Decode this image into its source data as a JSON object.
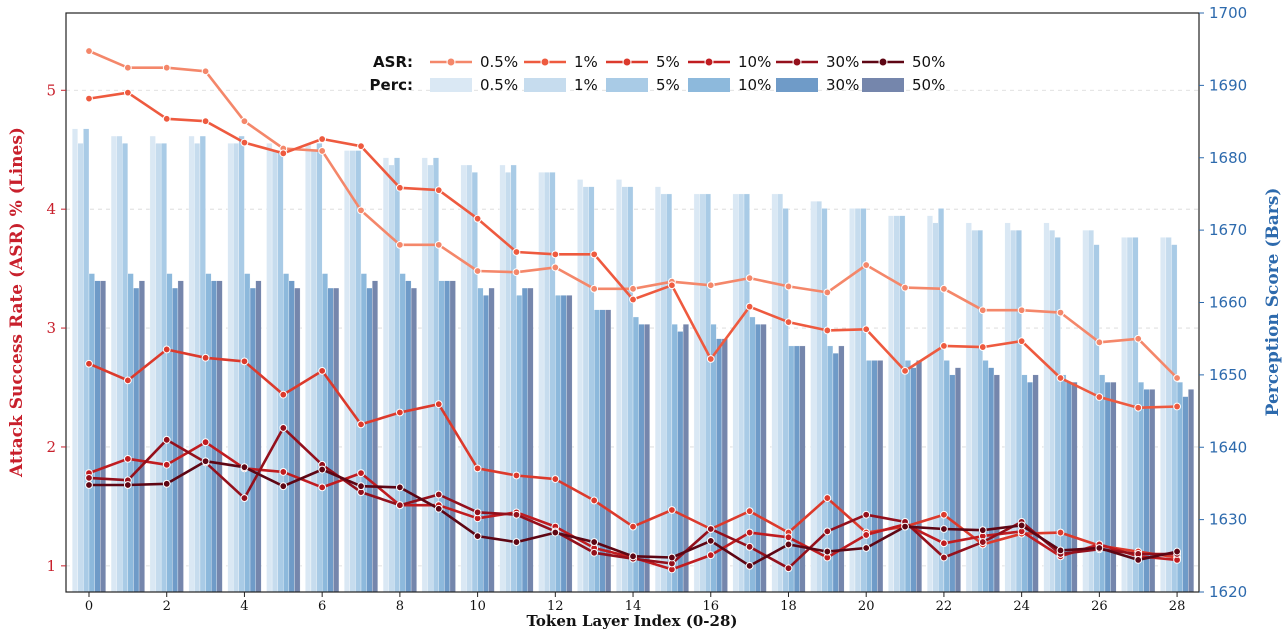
{
  "chart_data": {
    "type": "bar",
    "title": "",
    "xlabel": "Token Layer Index (0-28)",
    "ylabel_left": "Attack Success Rate (ASR) % (Lines)",
    "ylabel_right": "Perception Score (Bars)",
    "x": [
      0,
      1,
      2,
      3,
      4,
      5,
      6,
      7,
      8,
      9,
      10,
      11,
      12,
      13,
      14,
      15,
      16,
      17,
      18,
      19,
      20,
      21,
      22,
      23,
      24,
      25,
      26,
      27,
      28
    ],
    "x_ticks": [
      "0",
      "2",
      "4",
      "6",
      "8",
      "10",
      "12",
      "14",
      "16",
      "18",
      "20",
      "22",
      "24",
      "26",
      "28"
    ],
    "ylim_left": [
      0.78,
      5.65
    ],
    "yticks_left": [
      "1",
      "2",
      "3",
      "4",
      "5"
    ],
    "ylim_right": [
      1620,
      1700
    ],
    "yticks_right": [
      "1620",
      "1630",
      "1640",
      "1650",
      "1660",
      "1670",
      "1680",
      "1690",
      "1700"
    ],
    "grid": "horizontal dashed",
    "legend": {
      "placement": "top-center",
      "asr_header": "ASR:",
      "perc_header": "Perc:",
      "labels": [
        "0.5%",
        "1%",
        "5%",
        "10%",
        "30%",
        "50%"
      ]
    },
    "line_series": [
      {
        "name": "0.5%",
        "color": "#f4876a",
        "values": [
          5.33,
          5.19,
          5.19,
          5.16,
          4.74,
          4.51,
          4.49,
          3.99,
          3.7,
          3.7,
          3.48,
          3.47,
          3.51,
          3.33,
          3.33,
          3.39,
          3.36,
          3.42,
          3.35,
          3.3,
          3.53,
          3.34,
          3.33,
          3.15,
          3.15,
          3.13,
          2.88,
          2.91,
          2.58
        ]
      },
      {
        "name": "1%",
        "color": "#ee5a3f",
        "values": [
          4.93,
          4.98,
          4.76,
          4.74,
          4.56,
          4.47,
          4.59,
          4.53,
          4.18,
          4.16,
          3.92,
          3.64,
          3.62,
          3.62,
          3.24,
          3.36,
          2.74,
          3.18,
          3.05,
          2.98,
          2.99,
          2.64,
          2.85,
          2.84,
          2.89,
          2.58,
          2.42,
          2.33,
          2.34
        ]
      },
      {
        "name": "5%",
        "color": "#dc3a2c",
        "values": [
          2.7,
          2.56,
          2.82,
          2.75,
          2.72,
          2.44,
          2.64,
          2.19,
          2.29,
          2.36,
          1.82,
          1.76,
          1.73,
          1.55,
          1.33,
          1.47,
          1.31,
          1.46,
          1.28,
          1.57,
          1.28,
          1.33,
          1.43,
          1.18,
          1.27,
          1.28,
          1.17,
          1.12,
          1.07
        ]
      },
      {
        "name": "10%",
        "color": "#c01c20",
        "values": [
          1.78,
          1.9,
          1.85,
          2.04,
          1.82,
          1.79,
          1.66,
          1.78,
          1.51,
          1.51,
          1.4,
          1.45,
          1.33,
          1.15,
          1.07,
          0.97,
          1.09,
          1.28,
          1.24,
          1.07,
          1.26,
          1.35,
          1.19,
          1.25,
          1.29,
          1.08,
          1.18,
          1.08,
          1.05
        ]
      },
      {
        "name": "30%",
        "color": "#94101c",
        "values": [
          1.74,
          1.72,
          2.06,
          1.87,
          1.57,
          2.16,
          1.85,
          1.62,
          1.51,
          1.6,
          1.45,
          1.43,
          1.29,
          1.11,
          1.06,
          1.02,
          1.31,
          1.16,
          0.98,
          1.29,
          1.43,
          1.37,
          1.07,
          1.2,
          1.37,
          1.1,
          1.14,
          1.1,
          1.1
        ]
      },
      {
        "name": "50%",
        "color": "#5e0614",
        "values": [
          1.68,
          1.68,
          1.69,
          1.88,
          1.83,
          1.67,
          1.81,
          1.67,
          1.66,
          1.48,
          1.25,
          1.2,
          1.28,
          1.2,
          1.08,
          1.07,
          1.21,
          1.0,
          1.18,
          1.12,
          1.15,
          1.33,
          1.31,
          1.3,
          1.34,
          1.13,
          1.15,
          1.05,
          1.12
        ]
      }
    ],
    "bar_series": [
      {
        "name": "0.5%",
        "color": "#dae8f4",
        "values": [
          1684,
          1683,
          1683,
          1683,
          1682,
          1682,
          1682,
          1681,
          1680,
          1680,
          1679,
          1679,
          1678,
          1677,
          1677,
          1676,
          1675,
          1675,
          1675,
          1674,
          1673,
          1672,
          1672,
          1671,
          1671,
          1671,
          1670,
          1669,
          1669
        ]
      },
      {
        "name": "1%",
        "color": "#c6dcee",
        "values": [
          1682,
          1683,
          1682,
          1682,
          1682,
          1681,
          1681,
          1681,
          1679,
          1679,
          1679,
          1678,
          1678,
          1676,
          1676,
          1675,
          1675,
          1675,
          1675,
          1674,
          1673,
          1672,
          1671,
          1670,
          1670,
          1670,
          1670,
          1669,
          1669
        ]
      },
      {
        "name": "5%",
        "color": "#a9cbe6",
        "values": [
          1684,
          1682,
          1682,
          1683,
          1683,
          1681,
          1682,
          1681,
          1680,
          1680,
          1678,
          1679,
          1678,
          1676,
          1676,
          1675,
          1675,
          1675,
          1673,
          1673,
          1673,
          1672,
          1673,
          1670,
          1670,
          1669,
          1668,
          1669,
          1668
        ]
      },
      {
        "name": "10%",
        "color": "#8db9dc",
        "values": [
          1664,
          1664,
          1664,
          1664,
          1664,
          1664,
          1664,
          1664,
          1664,
          1663,
          1662,
          1661,
          1661,
          1659,
          1658,
          1657,
          1657,
          1658,
          1654,
          1654,
          1652,
          1652,
          1652,
          1652,
          1650,
          1650,
          1650,
          1649,
          1649
        ]
      },
      {
        "name": "30%",
        "color": "#6f9bc8",
        "values": [
          1663,
          1662,
          1662,
          1663,
          1662,
          1663,
          1662,
          1662,
          1663,
          1663,
          1661,
          1662,
          1661,
          1659,
          1657,
          1656,
          1655,
          1657,
          1654,
          1653,
          1652,
          1651,
          1650,
          1651,
          1649,
          1649,
          1649,
          1648,
          1647
        ]
      },
      {
        "name": "50%",
        "color": "#7586ac",
        "values": [
          1663,
          1663,
          1663,
          1663,
          1663,
          1662,
          1662,
          1663,
          1662,
          1663,
          1662,
          1662,
          1661,
          1659,
          1657,
          1657,
          1655,
          1657,
          1654,
          1654,
          1652,
          1652,
          1651,
          1650,
          1650,
          1649,
          1649,
          1648,
          1648
        ]
      }
    ]
  }
}
